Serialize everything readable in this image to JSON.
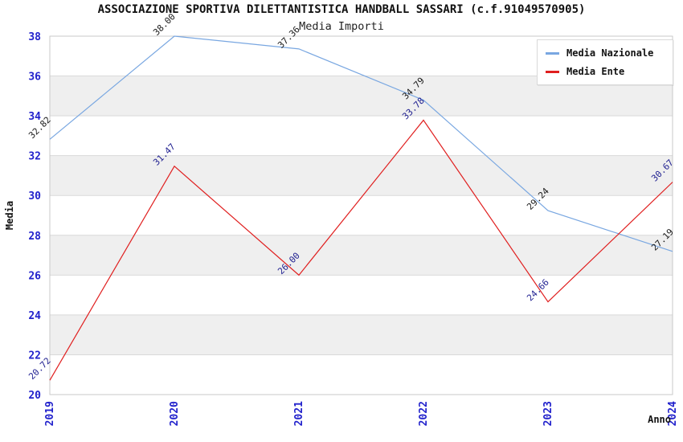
{
  "chart": {
    "title": "ASSOCIAZIONE SPORTIVA DILETTANTISTICA HANDBALL SASSARI (c.f.91049570905)",
    "subtitle": "Media Importi"
  },
  "chart_data": {
    "type": "line",
    "x": [
      "2019",
      "2020",
      "2021",
      "2022",
      "2023",
      "2024"
    ],
    "series": [
      {
        "name": "Media Nazionale",
        "color": "#79a7e1",
        "label_color": "#1a1a1a",
        "values": [
          32.82,
          38.0,
          37.36,
          34.79,
          29.24,
          27.19
        ]
      },
      {
        "name": "Media Ente",
        "color": "#e01f1f",
        "label_color": "#1f1f90",
        "values": [
          20.72,
          31.47,
          26.0,
          33.78,
          24.66,
          30.67
        ]
      }
    ],
    "xlabel": "Anno",
    "ylabel": "Media",
    "ylim": [
      20,
      38
    ],
    "ytick_step": 2,
    "legend_position": "top-right",
    "grid": "horizontal-bands",
    "point_label_decimals": 2,
    "style": {
      "tick_label_color": "#2222cc",
      "band_color": "#efefef",
      "band_alt_color": "#ffffff",
      "grid_line_color": "#d9d9d9",
      "plot_border_color": "#c9c9c9",
      "axis_title_color": "#111111",
      "background": "#ffffff"
    }
  }
}
